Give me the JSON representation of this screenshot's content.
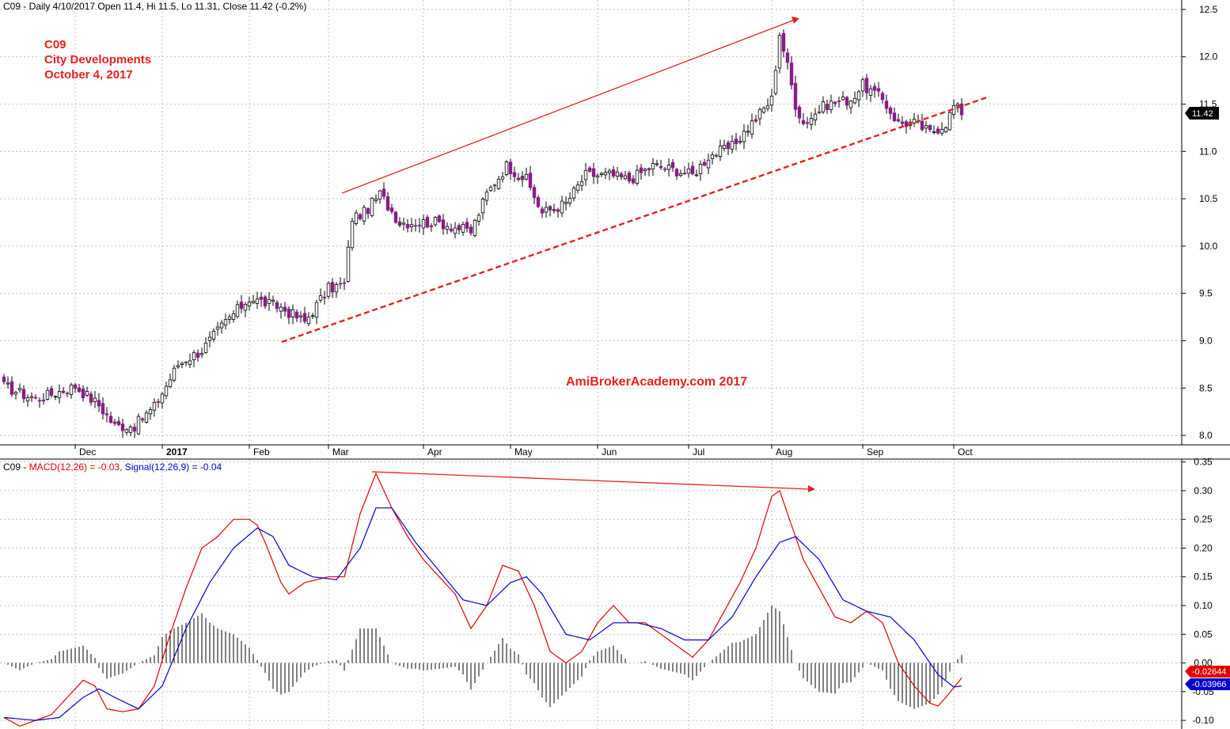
{
  "colors": {
    "bear_body": "#8b1a8b",
    "bull_body": "#ffffff",
    "candle_outline": "#000000",
    "macd_line": "#e00000",
    "signal_line": "#0000cc",
    "histogram": "#000000",
    "annotation": "#e8201c",
    "grid": "#b0b0b0"
  },
  "price_header": "C09 - Daily 4/10/2017 Open 11.4, Hi 11.5, Lo 11.31, Close 11.42 (-0.2%)",
  "macd_header": {
    "prefix": "C09 - ",
    "macd_part": "MACD(12,26) = -0.03,",
    "signal_part": "Signal(12,26,9) = -0.04"
  },
  "annotation_lines": [
    "C09",
    "City Developments",
    "October 4, 2017"
  ],
  "watermark": "AmiBrokerAcademy.com  2017",
  "last_close_tag": "11.42",
  "macd_tag": "-0.02644",
  "signal_tag": "-0.03966",
  "chart_data": [
    {
      "type": "candlestick",
      "ylim": [
        7.9,
        12.6
      ],
      "yticks": [
        "12.5",
        "12.0",
        "11.5",
        "11.0",
        "10.5",
        "10.0",
        "9.5",
        "9.0",
        "8.5",
        "8.0"
      ],
      "ytick_values": [
        12.5,
        12.0,
        11.5,
        11.0,
        10.5,
        10.0,
        9.5,
        9.0,
        8.5,
        8.0
      ],
      "months": [
        "Dec",
        "2017",
        "Feb",
        "Mar",
        "Apr",
        "May",
        "Jun",
        "Jul",
        "Aug",
        "Sep",
        "Oct"
      ],
      "month_bar_index": [
        18,
        40,
        62,
        82,
        106,
        128,
        150,
        173,
        194,
        217,
        240
      ],
      "num_bars": 243,
      "anchors": [
        [
          0,
          8.52
        ],
        [
          8,
          8.38
        ],
        [
          13,
          8.45
        ],
        [
          18,
          8.52
        ],
        [
          24,
          8.32
        ],
        [
          28,
          8.1
        ],
        [
          33,
          8.1
        ],
        [
          38,
          8.3
        ],
        [
          44,
          8.75
        ],
        [
          50,
          8.9
        ],
        [
          56,
          9.2
        ],
        [
          62,
          9.45
        ],
        [
          70,
          9.35
        ],
        [
          76,
          9.2
        ],
        [
          82,
          9.55
        ],
        [
          86,
          9.6
        ],
        [
          88,
          10.3
        ],
        [
          91,
          10.35
        ],
        [
          95,
          10.55
        ],
        [
          100,
          10.25
        ],
        [
          110,
          10.25
        ],
        [
          118,
          10.15
        ],
        [
          122,
          10.55
        ],
        [
          127,
          10.85
        ],
        [
          132,
          10.7
        ],
        [
          136,
          10.35
        ],
        [
          142,
          10.45
        ],
        [
          147,
          10.75
        ],
        [
          153,
          10.75
        ],
        [
          158,
          10.7
        ],
        [
          164,
          10.85
        ],
        [
          170,
          10.8
        ],
        [
          174,
          10.75
        ],
        [
          178,
          10.95
        ],
        [
          184,
          11.05
        ],
        [
          189,
          11.3
        ],
        [
          194,
          11.55
        ],
        [
          196,
          12.25
        ],
        [
          198,
          11.9
        ],
        [
          200,
          11.5
        ],
        [
          202,
          11.3
        ],
        [
          208,
          11.5
        ],
        [
          214,
          11.55
        ],
        [
          217,
          11.7
        ],
        [
          222,
          11.55
        ],
        [
          226,
          11.3
        ],
        [
          230,
          11.3
        ],
        [
          234,
          11.2
        ],
        [
          238,
          11.3
        ],
        [
          240,
          11.48
        ],
        [
          242,
          11.42
        ]
      ]
    },
    {
      "type": "line",
      "name": "MACD(12,26)",
      "ylim": [
        -0.115,
        0.355
      ],
      "yticks": [
        "0.35",
        "0.30",
        "0.25",
        "0.20",
        "0.15",
        "0.10",
        "0.05",
        "0.00",
        "-0.05",
        "-0.10"
      ],
      "ytick_values": [
        0.35,
        0.3,
        0.25,
        0.2,
        0.15,
        0.1,
        0.05,
        0.0,
        -0.05,
        -0.1
      ],
      "macd_anchors": [
        [
          0,
          -0.095
        ],
        [
          4,
          -0.11
        ],
        [
          8,
          -0.1
        ],
        [
          12,
          -0.09
        ],
        [
          16,
          -0.06
        ],
        [
          20,
          -0.03
        ],
        [
          23,
          -0.04
        ],
        [
          26,
          -0.08
        ],
        [
          30,
          -0.085
        ],
        [
          34,
          -0.08
        ],
        [
          38,
          -0.04
        ],
        [
          42,
          0.05
        ],
        [
          46,
          0.13
        ],
        [
          50,
          0.2
        ],
        [
          54,
          0.22
        ],
        [
          58,
          0.25
        ],
        [
          62,
          0.25
        ],
        [
          64,
          0.24
        ],
        [
          66,
          0.21
        ],
        [
          70,
          0.14
        ],
        [
          72,
          0.12
        ],
        [
          76,
          0.14
        ],
        [
          82,
          0.15
        ],
        [
          86,
          0.15
        ],
        [
          90,
          0.26
        ],
        [
          94,
          0.33
        ],
        [
          98,
          0.27
        ],
        [
          102,
          0.22
        ],
        [
          106,
          0.18
        ],
        [
          110,
          0.15
        ],
        [
          114,
          0.12
        ],
        [
          118,
          0.06
        ],
        [
          122,
          0.1
        ],
        [
          126,
          0.17
        ],
        [
          130,
          0.16
        ],
        [
          134,
          0.1
        ],
        [
          138,
          0.02
        ],
        [
          142,
          0.0
        ],
        [
          146,
          0.02
        ],
        [
          150,
          0.07
        ],
        [
          154,
          0.1
        ],
        [
          158,
          0.07
        ],
        [
          162,
          0.07
        ],
        [
          166,
          0.05
        ],
        [
          170,
          0.03
        ],
        [
          174,
          0.01
        ],
        [
          178,
          0.04
        ],
        [
          182,
          0.09
        ],
        [
          186,
          0.14
        ],
        [
          190,
          0.2
        ],
        [
          194,
          0.29
        ],
        [
          196,
          0.3
        ],
        [
          198,
          0.26
        ],
        [
          202,
          0.18
        ],
        [
          206,
          0.13
        ],
        [
          210,
          0.08
        ],
        [
          214,
          0.07
        ],
        [
          218,
          0.09
        ],
        [
          222,
          0.07
        ],
        [
          226,
          0.0
        ],
        [
          230,
          -0.04
        ],
        [
          234,
          -0.07
        ],
        [
          236,
          -0.075
        ],
        [
          238,
          -0.06
        ],
        [
          242,
          -0.026
        ]
      ],
      "signal_anchors": [
        [
          0,
          -0.095
        ],
        [
          8,
          -0.1
        ],
        [
          14,
          -0.095
        ],
        [
          20,
          -0.06
        ],
        [
          24,
          -0.045
        ],
        [
          28,
          -0.06
        ],
        [
          34,
          -0.08
        ],
        [
          40,
          -0.04
        ],
        [
          46,
          0.06
        ],
        [
          52,
          0.14
        ],
        [
          58,
          0.2
        ],
        [
          64,
          0.235
        ],
        [
          68,
          0.22
        ],
        [
          72,
          0.17
        ],
        [
          78,
          0.15
        ],
        [
          84,
          0.145
        ],
        [
          90,
          0.2
        ],
        [
          94,
          0.27
        ],
        [
          98,
          0.27
        ],
        [
          104,
          0.21
        ],
        [
          110,
          0.16
        ],
        [
          116,
          0.11
        ],
        [
          122,
          0.1
        ],
        [
          128,
          0.14
        ],
        [
          132,
          0.15
        ],
        [
          136,
          0.12
        ],
        [
          142,
          0.05
        ],
        [
          148,
          0.04
        ],
        [
          154,
          0.07
        ],
        [
          160,
          0.07
        ],
        [
          166,
          0.06
        ],
        [
          172,
          0.04
        ],
        [
          178,
          0.04
        ],
        [
          184,
          0.08
        ],
        [
          190,
          0.15
        ],
        [
          196,
          0.21
        ],
        [
          200,
          0.22
        ],
        [
          206,
          0.18
        ],
        [
          212,
          0.11
        ],
        [
          218,
          0.09
        ],
        [
          224,
          0.08
        ],
        [
          230,
          0.04
        ],
        [
          236,
          -0.02
        ],
        [
          240,
          -0.042
        ],
        [
          242,
          -0.04
        ]
      ]
    }
  ]
}
